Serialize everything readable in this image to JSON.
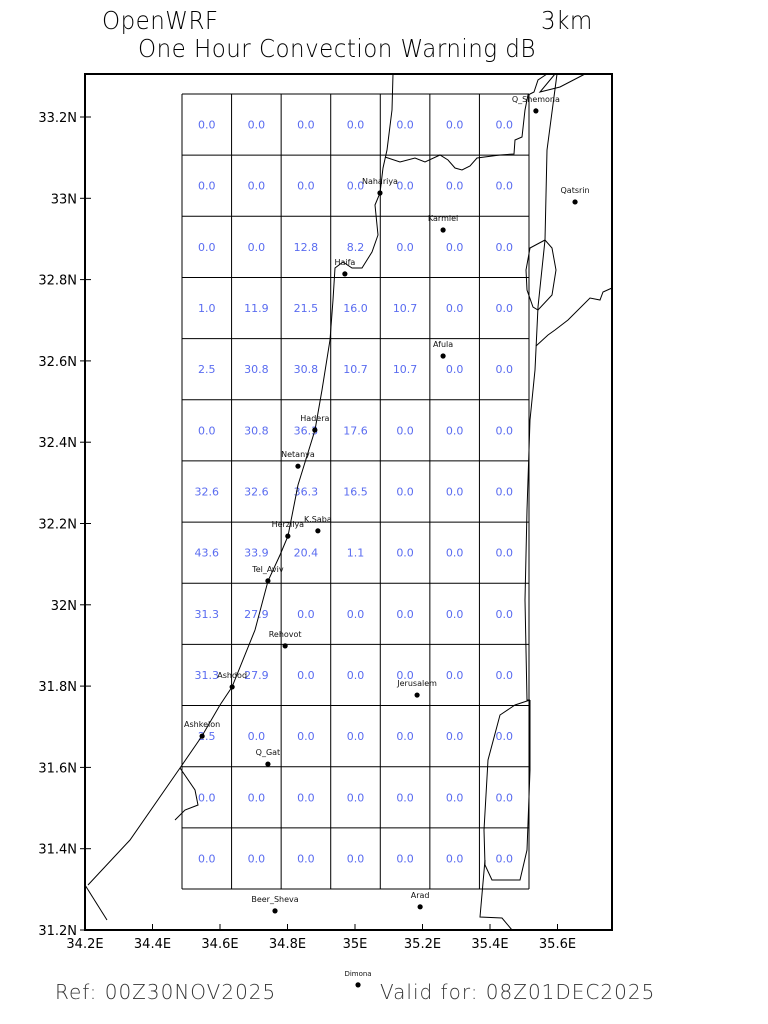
{
  "header": {
    "model": "OpenWRF",
    "resolution": "3km",
    "title": "One Hour Convection Warning dB"
  },
  "footer": {
    "ref": "Ref: 00Z30NOV2025",
    "valid": "Valid for: 08Z01DEC2025"
  },
  "colors": {
    "values": "#5a6cf0",
    "lines": "#000000"
  },
  "axes": {
    "lon_ticks": [
      "34.2E",
      "34.4E",
      "34.6E",
      "34.8E",
      "35E",
      "35.2E",
      "35.4E",
      "35.6E"
    ],
    "lon_values": [
      34.2,
      34.4,
      34.6,
      34.8,
      35.0,
      35.2,
      35.4,
      35.6
    ],
    "lat_ticks": [
      "31.2N",
      "31.4N",
      "31.6N",
      "31.8N",
      "32N",
      "32.2N",
      "32.4N",
      "32.6N",
      "32.8N",
      "33N",
      "33.2N"
    ],
    "lat_values": [
      31.2,
      31.4,
      31.6,
      31.8,
      32.0,
      32.2,
      32.4,
      32.6,
      32.8,
      33.0,
      33.2
    ]
  },
  "grid_values": [
    [
      "0.0",
      "0.0",
      "0.0",
      "0.0",
      "0.0",
      "0.0",
      "0.0"
    ],
    [
      "0.0",
      "0.0",
      "0.0",
      "0.0",
      "0.0",
      "0.0",
      "0.0"
    ],
    [
      "0.0",
      "0.0",
      "12.8",
      "8.2",
      "0.0",
      "0.0",
      "0.0"
    ],
    [
      "1.0",
      "11.9",
      "21.5",
      "16.0",
      "10.7",
      "0.0",
      "0.0"
    ],
    [
      "2.5",
      "30.8",
      "30.8",
      "10.7",
      "10.7",
      "0.0",
      "0.0"
    ],
    [
      "0.0",
      "30.8",
      "36.3",
      "17.6",
      "0.0",
      "0.0",
      "0.0"
    ],
    [
      "32.6",
      "32.6",
      "36.3",
      "16.5",
      "0.0",
      "0.0",
      "0.0"
    ],
    [
      "43.6",
      "33.9",
      "20.4",
      "1.1",
      "0.0",
      "0.0",
      "0.0"
    ],
    [
      "31.3",
      "27.9",
      "0.0",
      "0.0",
      "0.0",
      "0.0",
      "0.0"
    ],
    [
      "31.3",
      "27.9",
      "0.0",
      "0.0",
      "0.0",
      "0.0",
      "0.0"
    ],
    [
      "2.5",
      "0.0",
      "0.0",
      "0.0",
      "0.0",
      "0.0",
      "0.0"
    ],
    [
      "0.0",
      "0.0",
      "0.0",
      "0.0",
      "0.0",
      "0.0",
      "0.0"
    ],
    [
      "0.0",
      "0.0",
      "0.0",
      "0.0",
      "0.0",
      "0.0",
      "0.0"
    ]
  ],
  "cities": [
    {
      "name": "Q_Shemona",
      "lon": 35.536,
      "lat": 33.215
    },
    {
      "name": "Qatsrin",
      "lon": 35.652,
      "lat": 32.991
    },
    {
      "name": "Nahariya",
      "lon": 35.074,
      "lat": 33.013
    },
    {
      "name": "Karmiel",
      "lon": 35.261,
      "lat": 32.922
    },
    {
      "name": "Haifa",
      "lon": 34.97,
      "lat": 32.814
    },
    {
      "name": "Afula",
      "lon": 35.261,
      "lat": 32.612
    },
    {
      "name": "Hadera",
      "lon": 34.881,
      "lat": 32.43
    },
    {
      "name": "Netanya",
      "lon": 34.831,
      "lat": 32.341
    },
    {
      "name": "Herzliya",
      "lon": 34.801,
      "lat": 32.169
    },
    {
      "name": "K.Saba",
      "lon": 34.89,
      "lat": 32.182
    },
    {
      "name": "Tel_Aviv",
      "lon": 34.742,
      "lat": 32.059
    },
    {
      "name": "Rehovot",
      "lon": 34.793,
      "lat": 31.899
    },
    {
      "name": "Ashdod",
      "lon": 34.636,
      "lat": 31.798
    },
    {
      "name": "Jerusalem",
      "lon": 35.184,
      "lat": 31.778
    },
    {
      "name": "Ashkelon",
      "lon": 34.547,
      "lat": 31.677
    },
    {
      "name": "Q_Gat",
      "lon": 34.742,
      "lat": 31.608
    },
    {
      "name": "Beer_Sheva",
      "lon": 34.763,
      "lat": 31.247
    },
    {
      "name": "Arad",
      "lon": 35.193,
      "lat": 31.257
    },
    {
      "name": "Dimona",
      "lon": 35.009,
      "lat": 31.065
    }
  ]
}
